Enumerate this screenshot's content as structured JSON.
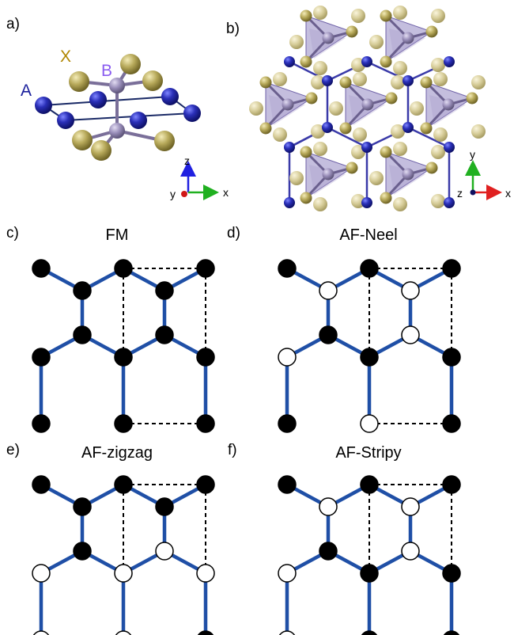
{
  "panels": {
    "a": {
      "label": "a)",
      "species": {
        "a": "A",
        "b": "B",
        "x": "X"
      }
    },
    "b": {
      "label": "b)"
    },
    "c": {
      "label": "c)",
      "title": "FM"
    },
    "d": {
      "label": "d)",
      "title": "AF-Neel"
    },
    "e": {
      "label": "e)",
      "title": "AF-zigzag"
    },
    "f": {
      "label": "f)",
      "title": "AF-Stripy"
    }
  },
  "axes_a": {
    "z": "z",
    "y": "y",
    "x": "x"
  },
  "axes_b": {
    "y": "y",
    "z": "z",
    "x": "x"
  },
  "colors": {
    "a_atom": "#1a1f9c",
    "b_atom": "#8f84ad",
    "x_atom": "#a89a4e",
    "bond": "#1f4fa6",
    "spin_up": "#000000",
    "spin_down": "#ffffff",
    "label_a": "#1a1f9c",
    "label_b": "#8a5cf0",
    "label_x": "#b08600"
  },
  "spin_states": {
    "FM": [
      "up",
      "up",
      "up",
      "up",
      "up",
      "up",
      "up",
      "up",
      "up",
      "up",
      "up",
      "up",
      "up",
      "up"
    ],
    "AF-Neel": [
      "up",
      "down",
      "up",
      "down",
      "up",
      "up",
      "down",
      "down",
      "up",
      "up",
      "up",
      "down",
      "up",
      "up"
    ],
    "AF-zigzag": [
      "up",
      "up",
      "up",
      "up",
      "up",
      "up",
      "down",
      "down",
      "down",
      "down",
      "down",
      "down",
      "up",
      "up"
    ],
    "AF-Stripy": [
      "up",
      "down",
      "up",
      "down",
      "up",
      "up",
      "down",
      "down",
      "up",
      "up",
      "down",
      "up",
      "up",
      "up"
    ]
  }
}
